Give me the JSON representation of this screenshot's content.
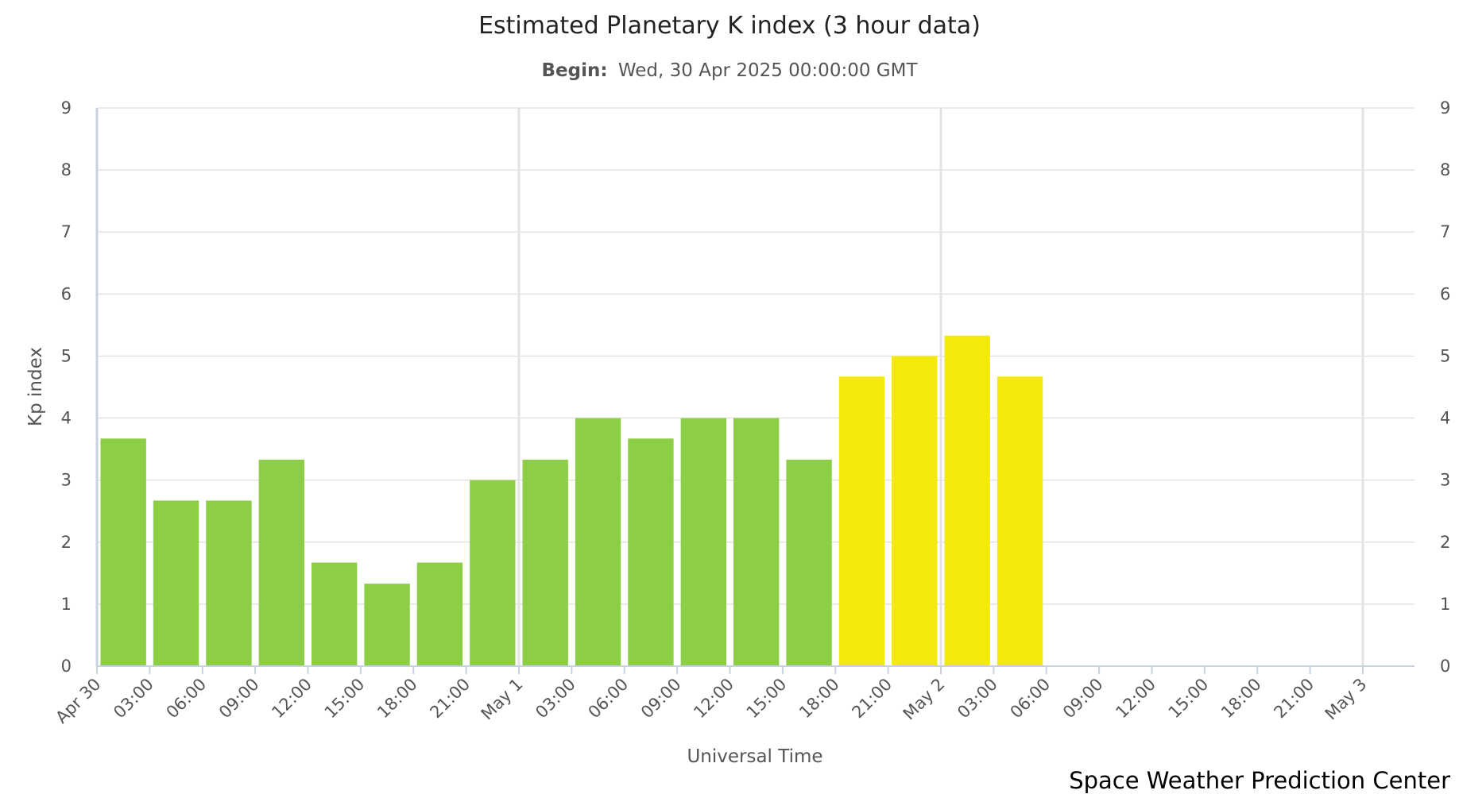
{
  "chart_data": {
    "type": "bar",
    "title": "Estimated Planetary K index (3 hour data)",
    "subtitle_label": "Begin:",
    "subtitle_value": "Wed, 30 Apr 2025 00:00:00 GMT",
    "xlabel": "Universal Time",
    "ylabel": "Kp index",
    "ylim": [
      0,
      9
    ],
    "yticks": [
      0,
      1,
      2,
      3,
      4,
      5,
      6,
      7,
      8,
      9
    ],
    "xlim_hours": [
      0,
      72
    ],
    "xticks": [
      "Apr 30",
      "03:00",
      "06:00",
      "09:00",
      "12:00",
      "15:00",
      "18:00",
      "21:00",
      "May 1",
      "03:00",
      "06:00",
      "09:00",
      "12:00",
      "15:00",
      "18:00",
      "21:00",
      "May 2",
      "03:00",
      "06:00",
      "09:00",
      "12:00",
      "15:00",
      "18:00",
      "21:00",
      "May 3"
    ],
    "categories": [
      "Apr 30 00:00",
      "Apr 30 03:00",
      "Apr 30 06:00",
      "Apr 30 09:00",
      "Apr 30 12:00",
      "Apr 30 15:00",
      "Apr 30 18:00",
      "Apr 30 21:00",
      "May 1 00:00",
      "May 1 03:00",
      "May 1 06:00",
      "May 1 09:00",
      "May 1 12:00",
      "May 1 15:00",
      "May 1 18:00",
      "May 1 21:00",
      "May 2 00:00",
      "May 2 03:00"
    ],
    "values": [
      3.67,
      2.67,
      2.67,
      3.33,
      1.67,
      1.33,
      1.67,
      3.0,
      3.33,
      4.0,
      3.67,
      4.0,
      4.0,
      3.33,
      4.67,
      5.0,
      5.33,
      4.67
    ],
    "colors": {
      "below_5": "#8ccf47",
      "storm": "#f4e90c"
    },
    "storm_threshold": 4.67,
    "grid": true,
    "legend": "none"
  },
  "credit": "Space Weather Prediction Center"
}
